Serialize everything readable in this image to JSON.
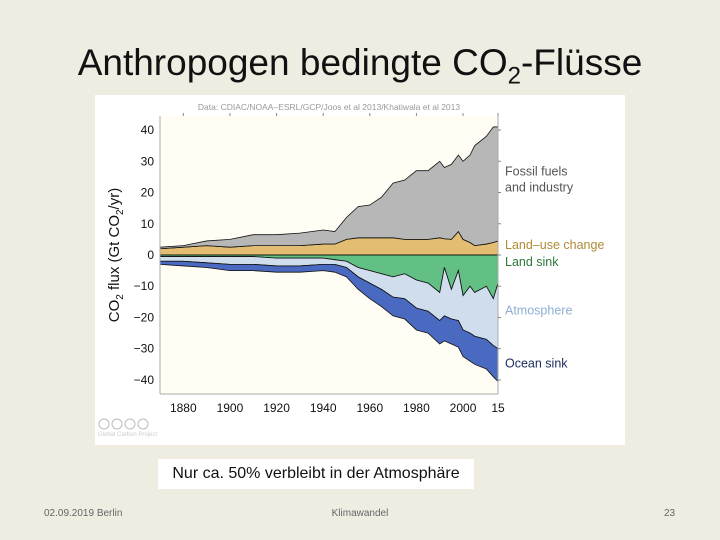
{
  "slide": {
    "title_main": "Anthropogen bedingte CO",
    "title_sub": "2",
    "title_end": "-Flüsse",
    "caption": "Nur ca. 50% verbleibt in der Atmosphäre",
    "footer_left": "02.09.2019 Berlin",
    "footer_center": "Klimawandel",
    "footer_right": "23",
    "credit": "Global Carbon Project",
    "credit_icons": [
      "cc-icon",
      "by-icon",
      "nc-icon",
      "sa-icon"
    ]
  },
  "chart_data": {
    "type": "area",
    "stacked": true,
    "source_note": "Data: CDIAC/NOAA–ESRL/GCP/Joos et al 2013/Khatiwala et al 2013",
    "ylabel": "CO2 flux (Gt CO2/yr)",
    "ylim": [
      -44.5,
      44.5
    ],
    "xlim": [
      1870,
      2015
    ],
    "xticks": [
      "1880",
      "1900",
      "1920",
      "1940",
      "1960",
      "1980",
      "2000",
      "15"
    ],
    "xtick_values": [
      1880,
      1900,
      1920,
      1940,
      1960,
      1980,
      2000,
      2015
    ],
    "yticks": [
      40,
      30,
      20,
      10,
      0,
      -10,
      -20,
      -30,
      -40
    ],
    "yticklabels": [
      "40",
      "30",
      "20",
      "10",
      "0",
      "−10",
      "−20",
      "−30",
      "−40"
    ],
    "x": [
      1870,
      1880,
      1890,
      1900,
      1910,
      1920,
      1930,
      1940,
      1945,
      1950,
      1955,
      1960,
      1965,
      1970,
      1975,
      1980,
      1985,
      1990,
      1992,
      1995,
      1998,
      2000,
      2003,
      2005,
      2010,
      2013,
      2015
    ],
    "series": [
      {
        "name": "Land–use change",
        "color": "#e2bd72",
        "label_color": "#b08a35",
        "values": [
          2,
          2.5,
          3,
          2.5,
          3,
          3,
          3,
          3.5,
          3.5,
          5,
          5.5,
          5.5,
          5.5,
          5.5,
          5,
          5,
          5,
          5.5,
          5.2,
          5,
          7.5,
          5,
          4,
          3,
          3.5,
          4,
          4.5
        ]
      },
      {
        "name": "Fossil fuels and industry",
        "color": "#b7b7b7",
        "label_color": "#555555",
        "values": [
          0.5,
          0.5,
          1.5,
          2.5,
          3.5,
          3.5,
          4,
          4.5,
          4,
          7,
          10,
          10.5,
          13,
          17.5,
          19,
          22,
          22,
          24.5,
          22.8,
          24,
          24.5,
          25,
          28,
          32,
          34.5,
          37,
          36.5
        ]
      },
      {
        "name": "Land sink",
        "color": "#62c085",
        "label_color": "#2e7a3c",
        "values": [
          -0.5,
          -0.5,
          -0.5,
          -0.5,
          -0.5,
          -1,
          -1,
          -1,
          -1.5,
          -2,
          -4,
          -5,
          -6,
          -7,
          -6,
          -8,
          -9,
          -12,
          -4,
          -11,
          -5,
          -13,
          -10,
          -12,
          -10,
          -14,
          -9
        ]
      },
      {
        "name": "Atmosphere",
        "color": "#d0dded",
        "label_color": "#8eaed4",
        "values": [
          -1.5,
          -1.5,
          -2,
          -2.5,
          -2.5,
          -2.5,
          -2.5,
          -2,
          -1.5,
          -2,
          -3,
          -4,
          -5,
          -6.5,
          -8,
          -9,
          -9,
          -9,
          -15.5,
          -9.5,
          -16,
          -11,
          -15,
          -14,
          -17,
          -15,
          -21
        ]
      },
      {
        "name": "Ocean sink",
        "color": "#4a69c0",
        "label_color": "#1b2a5e",
        "values": [
          -1,
          -1.5,
          -1.5,
          -2,
          -2,
          -2,
          -2,
          -2,
          -2.5,
          -3,
          -4,
          -5,
          -5.5,
          -6,
          -6.5,
          -7,
          -7,
          -7.5,
          -8,
          -8,
          -8.5,
          -8.5,
          -9,
          -9,
          -9.5,
          -10,
          -10.5
        ]
      }
    ],
    "grid": false,
    "legend": "right-side labels"
  }
}
